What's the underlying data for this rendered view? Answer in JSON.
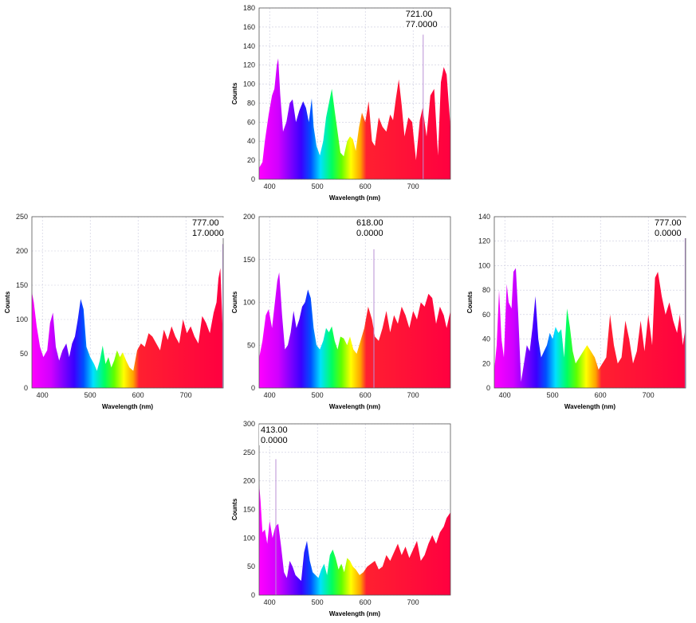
{
  "colors": {
    "spectrum_stops": [
      "#ff00ff",
      "#d000ff",
      "#3a00ff",
      "#0050ff",
      "#00e0ff",
      "#00ff60",
      "#60ff00",
      "#ffff00",
      "#ffa000",
      "#ff2030",
      "#ff0040"
    ],
    "cursor_line": "#b98fd6",
    "grid": "#c9c9dd",
    "readout_box": "#ffffff"
  },
  "chart_data": [
    {
      "id": "top",
      "type": "area",
      "xlabel": "Wavelength (nm)",
      "ylabel": "Counts",
      "xlim": [
        378,
        778
      ],
      "ylim": [
        0,
        180
      ],
      "x_ticks": [
        400,
        500,
        600,
        700
      ],
      "y_ticks": [
        0,
        20,
        40,
        60,
        80,
        100,
        120,
        140,
        160,
        180
      ],
      "grid": true,
      "cursor": {
        "x_label": "721.00",
        "y_label": "77.0000",
        "x": 721,
        "peak": 152
      },
      "x": [
        378,
        385,
        390,
        398,
        405,
        410,
        415,
        418,
        422,
        428,
        435,
        442,
        448,
        455,
        462,
        470,
        476,
        482,
        488,
        492,
        498,
        505,
        512,
        518,
        524,
        530,
        536,
        542,
        548,
        555,
        562,
        568,
        574,
        580,
        587,
        593,
        600,
        607,
        614,
        620,
        628,
        636,
        644,
        652,
        658,
        664,
        670,
        676,
        682,
        690,
        698,
        706,
        714,
        720,
        728,
        736,
        744,
        752,
        758,
        764,
        770,
        778
      ],
      "values": [
        12,
        18,
        40,
        68,
        88,
        95,
        120,
        127,
        90,
        50,
        60,
        80,
        84,
        60,
        72,
        82,
        75,
        60,
        85,
        55,
        35,
        25,
        40,
        65,
        80,
        95,
        72,
        50,
        28,
        24,
        40,
        45,
        42,
        30,
        55,
        70,
        60,
        82,
        40,
        35,
        65,
        55,
        50,
        68,
        62,
        85,
        105,
        78,
        45,
        65,
        60,
        20,
        62,
        75,
        45,
        88,
        95,
        25,
        102,
        118,
        110,
        55
      ]
    },
    {
      "id": "left",
      "type": "area",
      "xlabel": "Wavelength (nm)",
      "ylabel": "Counts",
      "xlim": [
        378,
        778
      ],
      "ylim": [
        0,
        250
      ],
      "x_ticks": [
        400,
        500,
        600,
        700
      ],
      "y_ticks": [
        0,
        50,
        100,
        150,
        200,
        250
      ],
      "grid": true,
      "cursor": {
        "x_label": "777.00",
        "y_label": "17.0000",
        "x": 777,
        "peak": 210
      },
      "x": [
        378,
        382,
        388,
        395,
        402,
        410,
        416,
        422,
        428,
        435,
        442,
        450,
        456,
        462,
        468,
        474,
        480,
        486,
        492,
        500,
        508,
        514,
        520,
        526,
        532,
        538,
        544,
        550,
        556,
        562,
        568,
        575,
        582,
        590,
        598,
        606,
        614,
        622,
        630,
        638,
        646,
        654,
        662,
        670,
        678,
        686,
        694,
        702,
        710,
        718,
        726,
        734,
        742,
        750,
        758,
        764,
        768,
        772,
        776,
        778
      ],
      "values": [
        140,
        125,
        90,
        60,
        45,
        55,
        95,
        110,
        60,
        40,
        55,
        65,
        45,
        65,
        75,
        100,
        130,
        115,
        60,
        45,
        35,
        25,
        40,
        62,
        35,
        45,
        30,
        40,
        55,
        45,
        52,
        40,
        30,
        25,
        55,
        65,
        60,
        80,
        75,
        65,
        55,
        85,
        70,
        90,
        75,
        65,
        100,
        80,
        90,
        75,
        65,
        105,
        95,
        80,
        110,
        125,
        160,
        175,
        100,
        60
      ]
    },
    {
      "id": "center",
      "type": "area",
      "xlabel": "Wavelength (nm)",
      "ylabel": "Counts",
      "xlim": [
        378,
        778
      ],
      "ylim": [
        0,
        200
      ],
      "x_ticks": [
        400,
        500,
        600,
        700
      ],
      "y_ticks": [
        0,
        50,
        100,
        150,
        200
      ],
      "grid": true,
      "cursor": {
        "x_label": "618.00",
        "y_label": "0.0000",
        "x": 618,
        "peak": 162
      },
      "x": [
        378,
        385,
        392,
        398,
        405,
        410,
        416,
        420,
        426,
        432,
        438,
        444,
        450,
        456,
        462,
        468,
        474,
        480,
        486,
        492,
        498,
        505,
        512,
        518,
        524,
        530,
        536,
        542,
        548,
        555,
        562,
        568,
        575,
        582,
        590,
        598,
        606,
        614,
        620,
        628,
        636,
        644,
        652,
        660,
        668,
        676,
        684,
        692,
        700,
        708,
        716,
        724,
        732,
        740,
        748,
        756,
        764,
        770,
        778
      ],
      "values": [
        35,
        55,
        85,
        92,
        70,
        95,
        125,
        135,
        85,
        45,
        50,
        65,
        90,
        70,
        80,
        95,
        100,
        115,
        105,
        70,
        50,
        45,
        55,
        70,
        65,
        72,
        55,
        45,
        60,
        58,
        50,
        60,
        45,
        40,
        55,
        70,
        95,
        80,
        60,
        55,
        70,
        90,
        65,
        85,
        75,
        95,
        85,
        70,
        90,
        80,
        100,
        95,
        110,
        105,
        75,
        95,
        85,
        70,
        90
      ]
    },
    {
      "id": "right",
      "type": "area",
      "xlabel": "Wavelength (nm)",
      "ylabel": "Counts",
      "xlim": [
        378,
        778
      ],
      "ylim": [
        0,
        140
      ],
      "x_ticks": [
        400,
        500,
        600,
        700
      ],
      "y_ticks": [
        0,
        20,
        40,
        60,
        80,
        100,
        120,
        140
      ],
      "grid": true,
      "cursor": {
        "x_label": "777.00",
        "y_label": "0.0000",
        "x": 777,
        "peak": 125
      },
      "x": [
        378,
        383,
        388,
        393,
        398,
        404,
        408,
        414,
        418,
        423,
        428,
        434,
        440,
        446,
        452,
        458,
        464,
        470,
        476,
        482,
        488,
        494,
        500,
        506,
        512,
        518,
        524,
        530,
        536,
        542,
        548,
        556,
        564,
        572,
        580,
        588,
        596,
        604,
        612,
        620,
        628,
        636,
        644,
        652,
        660,
        668,
        676,
        684,
        692,
        700,
        708,
        714,
        720,
        728,
        736,
        744,
        752,
        760,
        766,
        772,
        778
      ],
      "values": [
        15,
        35,
        80,
        40,
        25,
        85,
        70,
        65,
        95,
        98,
        60,
        5,
        20,
        35,
        30,
        50,
        75,
        40,
        25,
        30,
        35,
        45,
        40,
        50,
        45,
        48,
        25,
        65,
        50,
        30,
        20,
        25,
        30,
        35,
        30,
        25,
        15,
        20,
        25,
        60,
        35,
        20,
        25,
        55,
        40,
        20,
        30,
        55,
        30,
        60,
        35,
        90,
        95,
        75,
        60,
        70,
        55,
        45,
        60,
        35,
        50
      ]
    },
    {
      "id": "bottom",
      "type": "area",
      "xlabel": "Wavelength (nm)",
      "ylabel": "Counts",
      "xlim": [
        378,
        778
      ],
      "ylim": [
        0,
        300
      ],
      "x_ticks": [
        400,
        500,
        600,
        700
      ],
      "y_ticks": [
        0,
        50,
        100,
        150,
        200,
        250,
        300
      ],
      "grid": true,
      "cursor": {
        "x_label": "413.00",
        "y_label": "0.0000",
        "x": 413,
        "peak": 238
      },
      "x": [
        378,
        381,
        385,
        390,
        395,
        400,
        406,
        412,
        418,
        424,
        430,
        436,
        442,
        448,
        454,
        460,
        466,
        472,
        478,
        484,
        490,
        496,
        502,
        508,
        514,
        520,
        526,
        532,
        538,
        544,
        550,
        556,
        562,
        568,
        574,
        580,
        588,
        596,
        604,
        612,
        620,
        628,
        636,
        644,
        652,
        660,
        668,
        676,
        684,
        692,
        700,
        708,
        716,
        724,
        732,
        740,
        748,
        756,
        764,
        770,
        778
      ],
      "values": [
        195,
        165,
        110,
        115,
        90,
        130,
        100,
        120,
        125,
        85,
        40,
        30,
        60,
        50,
        35,
        30,
        25,
        75,
        95,
        60,
        40,
        35,
        30,
        45,
        55,
        35,
        70,
        80,
        65,
        45,
        55,
        40,
        65,
        60,
        50,
        45,
        35,
        40,
        50,
        55,
        60,
        45,
        50,
        70,
        60,
        75,
        90,
        70,
        85,
        65,
        80,
        95,
        60,
        70,
        90,
        105,
        90,
        110,
        120,
        135,
        145
      ]
    }
  ]
}
